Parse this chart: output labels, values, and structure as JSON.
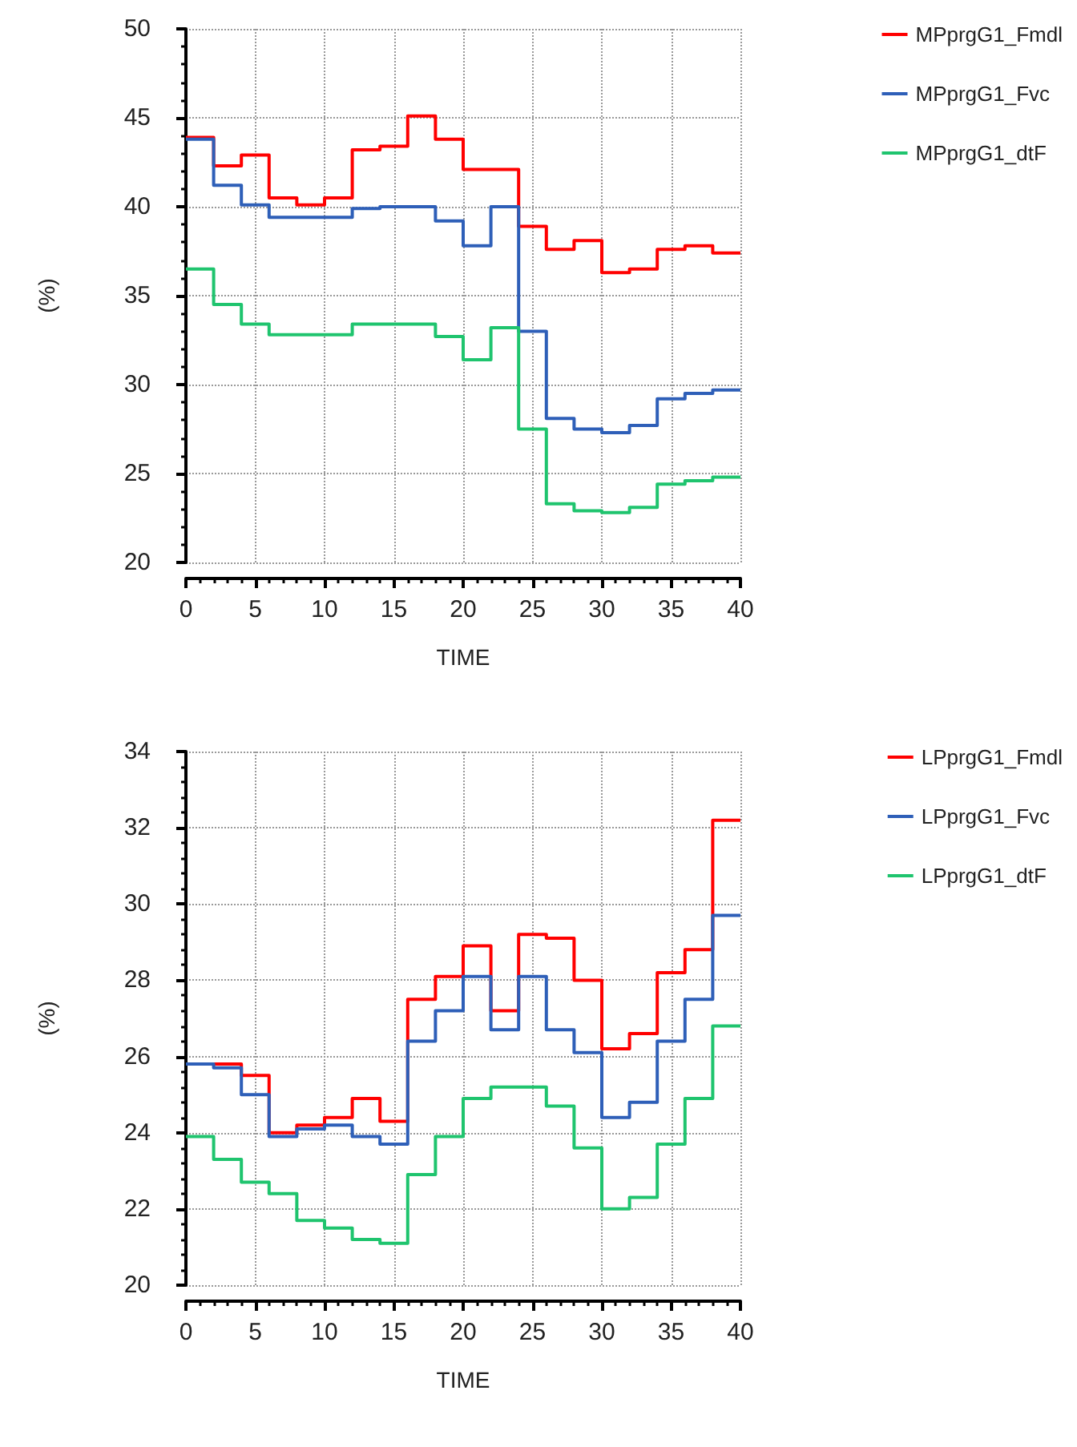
{
  "chart_data": [
    {
      "type": "step",
      "xlabel": "TIME",
      "ylabel": "(%)",
      "x": [
        0,
        2,
        4,
        6,
        8,
        10,
        12,
        14,
        16,
        18,
        20,
        22,
        24,
        26,
        28,
        30,
        32,
        34,
        36,
        38,
        40
      ],
      "xlim": [
        0,
        40
      ],
      "xticks": [
        0,
        5,
        10,
        15,
        20,
        25,
        30,
        35,
        40
      ],
      "ylim": [
        20,
        50
      ],
      "yticks": [
        20,
        25,
        30,
        35,
        40,
        45,
        50
      ],
      "grid": true,
      "legend": "top right",
      "marker": "none",
      "line_style": "solid",
      "series": [
        {
          "name": "MPprgG1_Fmdl",
          "color": "#ff0000",
          "values": [
            43.9,
            42.3,
            42.9,
            40.5,
            40.1,
            40.5,
            43.2,
            43.4,
            45.1,
            43.8,
            42.1,
            42.1,
            38.9,
            37.6,
            38.1,
            36.3,
            36.5,
            37.6,
            37.8,
            37.4,
            37.4
          ]
        },
        {
          "name": "MPprgG1_Fvc",
          "color": "#2e5fb8",
          "values": [
            43.8,
            41.2,
            40.1,
            39.4,
            39.4,
            39.4,
            39.9,
            40,
            40,
            39.2,
            37.8,
            40,
            33,
            28.1,
            27.5,
            27.3,
            27.7,
            29.2,
            29.5,
            29.7,
            29.7
          ]
        },
        {
          "name": "MPprgG1_dtF",
          "color": "#1fc46e",
          "values": [
            36.5,
            34.5,
            33.4,
            32.8,
            32.8,
            32.8,
            33.4,
            33.4,
            33.4,
            32.7,
            31.4,
            33.2,
            27.5,
            23.3,
            22.9,
            22.8,
            23.1,
            24.4,
            24.6,
            24.8,
            24.8
          ]
        }
      ]
    },
    {
      "type": "step",
      "xlabel": "TIME",
      "ylabel": "(%)",
      "x": [
        0,
        2,
        4,
        6,
        8,
        10,
        12,
        14,
        16,
        18,
        20,
        22,
        24,
        26,
        28,
        30,
        32,
        34,
        36,
        38,
        40
      ],
      "xlim": [
        0,
        40
      ],
      "xticks": [
        0,
        5,
        10,
        15,
        20,
        25,
        30,
        35,
        40
      ],
      "ylim": [
        20,
        34
      ],
      "yticks": [
        20,
        22,
        24,
        26,
        28,
        30,
        32,
        34
      ],
      "grid": true,
      "legend": "top right",
      "marker": "none",
      "line_style": "solid",
      "series": [
        {
          "name": "LPprgG1_Fmdl",
          "color": "#ff0000",
          "values": [
            null,
            25.8,
            25.5,
            24,
            24.2,
            24.4,
            24.9,
            24.3,
            27.5,
            28.1,
            28.9,
            27.2,
            29.2,
            29.1,
            28,
            26.2,
            26.6,
            28.2,
            28.8,
            32.2,
            32.2
          ]
        },
        {
          "name": "LPprgG1_Fvc",
          "color": "#2e5fb8",
          "values": [
            25.8,
            25.7,
            25,
            23.9,
            24.1,
            24.2,
            23.9,
            23.7,
            26.4,
            27.2,
            28.1,
            26.7,
            28.1,
            26.7,
            26.1,
            24.4,
            24.8,
            26.4,
            27.5,
            29.7,
            29.7
          ]
        },
        {
          "name": "LPprgG1_dtF",
          "color": "#1fc46e",
          "values": [
            23.9,
            23.3,
            22.7,
            22.4,
            21.7,
            21.5,
            21.2,
            21.1,
            22.9,
            23.9,
            24.9,
            25.2,
            25.2,
            24.7,
            23.6,
            22,
            22.3,
            23.7,
            24.9,
            26.8,
            26.8
          ]
        }
      ]
    }
  ]
}
